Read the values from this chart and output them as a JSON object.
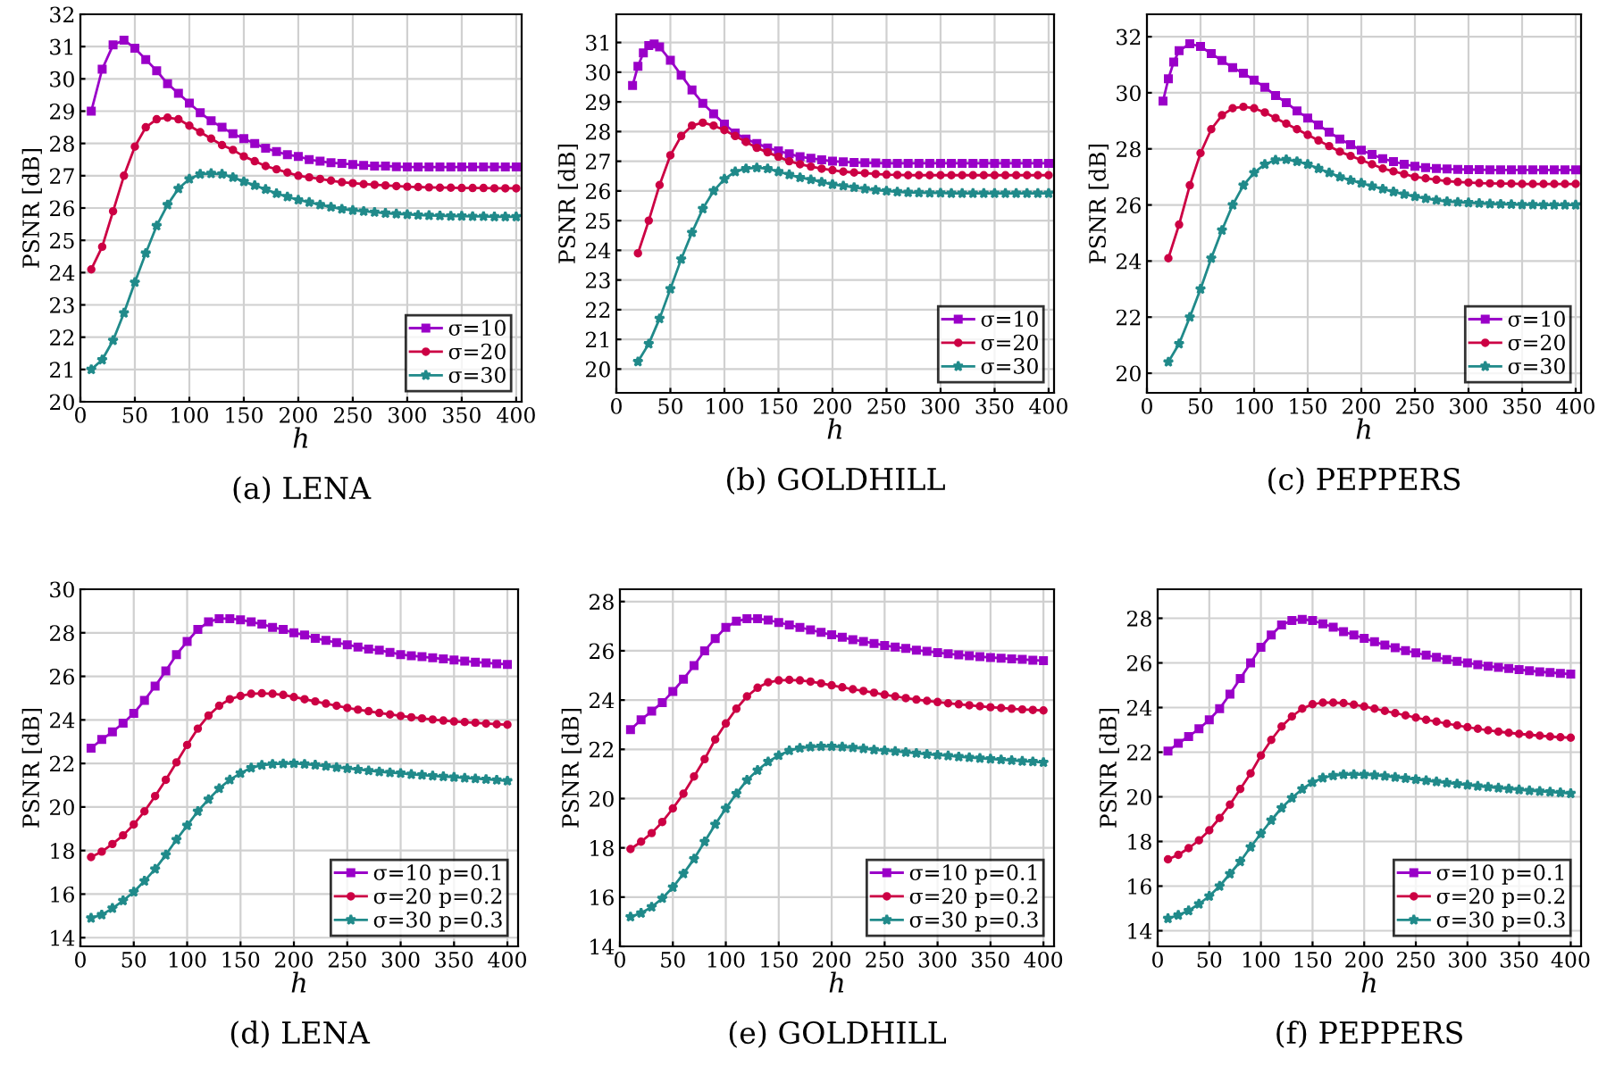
{
  "chart_data": [
    {
      "type": "line",
      "title": "(a) LENA",
      "xlabel": "h",
      "ylabel": "PSNR [dB]",
      "xlim": [
        0,
        405
      ],
      "ylim": [
        20,
        32
      ],
      "xticks": [
        0,
        50,
        100,
        150,
        200,
        250,
        300,
        350,
        400
      ],
      "yticks": [
        20,
        21,
        22,
        23,
        24,
        25,
        26,
        27,
        28,
        29,
        30,
        31,
        32
      ],
      "grid": true,
      "legend": "bottom right",
      "series": [
        {
          "name": "σ=10",
          "color": "#9a00c8",
          "marker": "square",
          "x": [
            10,
            20,
            30,
            40,
            50,
            60,
            70,
            80,
            90,
            100,
            110,
            120,
            130,
            140,
            150,
            160,
            170,
            180,
            190,
            200,
            210,
            220,
            230,
            240,
            250,
            260,
            270,
            280,
            290,
            300,
            310,
            320,
            330,
            340,
            350,
            360,
            370,
            380,
            390,
            400
          ],
          "values": [
            29.0,
            30.3,
            31.05,
            31.2,
            30.95,
            30.6,
            30.25,
            29.85,
            29.55,
            29.25,
            28.95,
            28.7,
            28.5,
            28.3,
            28.15,
            28.0,
            27.85,
            27.75,
            27.65,
            27.6,
            27.5,
            27.45,
            27.4,
            27.38,
            27.35,
            27.32,
            27.3,
            27.3,
            27.28,
            27.27,
            27.27,
            27.27,
            27.27,
            27.27,
            27.27,
            27.27,
            27.27,
            27.27,
            27.27,
            27.27
          ]
        },
        {
          "name": "σ=20",
          "color": "#cc0044",
          "marker": "circle",
          "x": [
            10,
            20,
            30,
            40,
            50,
            60,
            70,
            80,
            90,
            100,
            110,
            120,
            130,
            140,
            150,
            160,
            170,
            180,
            190,
            200,
            210,
            220,
            230,
            240,
            250,
            260,
            270,
            280,
            290,
            300,
            310,
            320,
            330,
            340,
            350,
            360,
            370,
            380,
            390,
            400
          ],
          "values": [
            24.1,
            24.8,
            25.9,
            27.0,
            27.9,
            28.5,
            28.75,
            28.8,
            28.75,
            28.55,
            28.35,
            28.15,
            27.95,
            27.8,
            27.6,
            27.45,
            27.3,
            27.2,
            27.1,
            27.0,
            26.95,
            26.9,
            26.85,
            26.8,
            26.77,
            26.74,
            26.72,
            26.7,
            26.68,
            26.66,
            26.65,
            26.64,
            26.63,
            26.63,
            26.62,
            26.62,
            26.62,
            26.61,
            26.61,
            26.61
          ]
        },
        {
          "name": "σ=30",
          "color": "#208a8a",
          "marker": "star",
          "x": [
            10,
            20,
            30,
            40,
            50,
            60,
            70,
            80,
            90,
            100,
            110,
            120,
            130,
            140,
            150,
            160,
            170,
            180,
            190,
            200,
            210,
            220,
            230,
            240,
            250,
            260,
            270,
            280,
            290,
            300,
            310,
            320,
            330,
            340,
            350,
            360,
            370,
            380,
            390,
            400
          ],
          "values": [
            21.0,
            21.3,
            21.9,
            22.75,
            23.7,
            24.6,
            25.45,
            26.1,
            26.6,
            26.9,
            27.05,
            27.07,
            27.05,
            26.95,
            26.82,
            26.7,
            26.58,
            26.45,
            26.35,
            26.25,
            26.18,
            26.1,
            26.03,
            25.97,
            25.93,
            25.9,
            25.87,
            25.84,
            25.82,
            25.8,
            25.78,
            25.77,
            25.76,
            25.75,
            25.75,
            25.74,
            25.74,
            25.73,
            25.73,
            25.73
          ]
        }
      ]
    },
    {
      "type": "line",
      "title": "(b) GOLDHILL",
      "xlabel": "h",
      "ylabel": "PSNR [dB]",
      "xlim": [
        0,
        405
      ],
      "ylim": [
        19.2,
        31.95
      ],
      "xticks": [
        0,
        50,
        100,
        150,
        200,
        250,
        300,
        350,
        400
      ],
      "yticks": [
        20,
        21,
        22,
        23,
        24,
        25,
        26,
        27,
        28,
        29,
        30,
        31
      ],
      "grid": true,
      "legend": "bottom right",
      "series": [
        {
          "name": "σ=10",
          "color": "#9a00c8",
          "marker": "square",
          "x": [
            15,
            20,
            25,
            30,
            35,
            40,
            50,
            60,
            70,
            80,
            90,
            100,
            110,
            120,
            130,
            140,
            150,
            160,
            170,
            180,
            190,
            200,
            210,
            220,
            230,
            240,
            250,
            260,
            270,
            280,
            290,
            300,
            310,
            320,
            330,
            340,
            350,
            360,
            370,
            380,
            390,
            400
          ],
          "values": [
            29.55,
            30.2,
            30.65,
            30.9,
            30.95,
            30.85,
            30.4,
            29.9,
            29.4,
            28.95,
            28.6,
            28.25,
            27.95,
            27.75,
            27.6,
            27.45,
            27.35,
            27.25,
            27.15,
            27.1,
            27.05,
            27.0,
            26.98,
            26.96,
            26.95,
            26.94,
            26.93,
            26.93,
            26.93,
            26.93,
            26.93,
            26.93,
            26.93,
            26.93,
            26.93,
            26.93,
            26.93,
            26.93,
            26.93,
            26.93,
            26.93,
            26.93
          ]
        },
        {
          "name": "σ=20",
          "color": "#cc0044",
          "marker": "circle",
          "x": [
            20,
            30,
            40,
            50,
            60,
            70,
            80,
            90,
            100,
            110,
            120,
            130,
            140,
            150,
            160,
            170,
            180,
            190,
            200,
            210,
            220,
            230,
            240,
            250,
            260,
            270,
            280,
            290,
            300,
            310,
            320,
            330,
            340,
            350,
            360,
            370,
            380,
            390,
            400
          ],
          "values": [
            23.9,
            25.0,
            26.2,
            27.2,
            27.85,
            28.2,
            28.3,
            28.2,
            28.05,
            27.85,
            27.65,
            27.45,
            27.3,
            27.15,
            27.0,
            26.9,
            26.82,
            26.75,
            26.7,
            26.65,
            26.62,
            26.6,
            26.57,
            26.55,
            26.54,
            26.53,
            26.53,
            26.53,
            26.53,
            26.53,
            26.53,
            26.53,
            26.53,
            26.53,
            26.53,
            26.53,
            26.53,
            26.53,
            26.53
          ]
        },
        {
          "name": "σ=30",
          "color": "#208a8a",
          "marker": "star",
          "x": [
            20,
            30,
            40,
            50,
            60,
            70,
            80,
            90,
            100,
            110,
            120,
            130,
            140,
            150,
            160,
            170,
            180,
            190,
            200,
            210,
            220,
            230,
            240,
            250,
            260,
            270,
            280,
            290,
            300,
            310,
            320,
            330,
            340,
            350,
            360,
            370,
            380,
            390,
            400
          ],
          "values": [
            20.25,
            20.85,
            21.7,
            22.7,
            23.7,
            24.6,
            25.4,
            26.0,
            26.4,
            26.65,
            26.75,
            26.78,
            26.75,
            26.65,
            26.55,
            26.45,
            26.38,
            26.3,
            26.22,
            26.17,
            26.12,
            26.07,
            26.03,
            26.0,
            25.97,
            25.95,
            25.94,
            25.93,
            25.93,
            25.92,
            25.92,
            25.92,
            25.92,
            25.92,
            25.92,
            25.92,
            25.92,
            25.92,
            25.92
          ]
        }
      ]
    },
    {
      "type": "line",
      "title": "(c) PEPPERS",
      "xlabel": "h",
      "ylabel": "PSNR [dB]",
      "xlim": [
        0,
        405
      ],
      "ylim": [
        19.3,
        32.8
      ],
      "xticks": [
        0,
        50,
        100,
        150,
        200,
        250,
        300,
        350,
        400
      ],
      "yticks": [
        20,
        22,
        24,
        26,
        28,
        30,
        32
      ],
      "grid": true,
      "legend": "bottom right",
      "series": [
        {
          "name": "σ=10",
          "color": "#9a00c8",
          "marker": "square",
          "x": [
            15,
            20,
            25,
            30,
            40,
            50,
            60,
            70,
            80,
            90,
            100,
            110,
            120,
            130,
            140,
            150,
            160,
            170,
            180,
            190,
            200,
            210,
            220,
            230,
            240,
            250,
            260,
            270,
            280,
            290,
            300,
            310,
            320,
            330,
            340,
            350,
            360,
            370,
            380,
            390,
            400
          ],
          "values": [
            29.7,
            30.5,
            31.1,
            31.5,
            31.75,
            31.65,
            31.4,
            31.15,
            30.9,
            30.7,
            30.45,
            30.2,
            29.9,
            29.65,
            29.35,
            29.1,
            28.85,
            28.6,
            28.35,
            28.15,
            27.95,
            27.8,
            27.65,
            27.55,
            27.45,
            27.38,
            27.33,
            27.3,
            27.28,
            27.27,
            27.26,
            27.26,
            27.25,
            27.25,
            27.25,
            27.25,
            27.25,
            27.25,
            27.25,
            27.25,
            27.25
          ]
        },
        {
          "name": "σ=20",
          "color": "#cc0044",
          "marker": "circle",
          "x": [
            20,
            30,
            40,
            50,
            60,
            70,
            80,
            90,
            100,
            110,
            120,
            130,
            140,
            150,
            160,
            170,
            180,
            190,
            200,
            210,
            220,
            230,
            240,
            250,
            260,
            270,
            280,
            290,
            300,
            310,
            320,
            330,
            340,
            350,
            360,
            370,
            380,
            390,
            400
          ],
          "values": [
            24.1,
            25.3,
            26.7,
            27.85,
            28.7,
            29.2,
            29.45,
            29.5,
            29.45,
            29.3,
            29.1,
            28.9,
            28.7,
            28.5,
            28.3,
            28.1,
            27.9,
            27.75,
            27.6,
            27.45,
            27.3,
            27.2,
            27.1,
            27.0,
            26.95,
            26.9,
            26.85,
            26.82,
            26.8,
            26.78,
            26.77,
            26.76,
            26.76,
            26.75,
            26.75,
            26.75,
            26.75,
            26.75,
            26.75
          ]
        },
        {
          "name": "σ=30",
          "color": "#208a8a",
          "marker": "star",
          "x": [
            20,
            30,
            40,
            50,
            60,
            70,
            80,
            90,
            100,
            110,
            120,
            130,
            140,
            150,
            160,
            170,
            180,
            190,
            200,
            210,
            220,
            230,
            240,
            250,
            260,
            270,
            280,
            290,
            300,
            310,
            320,
            330,
            340,
            350,
            360,
            370,
            380,
            390,
            400
          ],
          "values": [
            20.4,
            21.05,
            22.0,
            23.0,
            24.1,
            25.1,
            26.0,
            26.7,
            27.15,
            27.45,
            27.6,
            27.62,
            27.55,
            27.45,
            27.3,
            27.15,
            27.0,
            26.88,
            26.78,
            26.67,
            26.57,
            26.47,
            26.38,
            26.3,
            26.23,
            26.17,
            26.12,
            26.1,
            26.08,
            26.06,
            26.04,
            26.03,
            26.02,
            26.01,
            26.01,
            26.0,
            26.0,
            26.0,
            26.0
          ]
        }
      ]
    },
    {
      "type": "line",
      "title": "(d) LENA",
      "xlabel": "h",
      "ylabel": "PSNR [dB]",
      "xlim": [
        0,
        410
      ],
      "ylim": [
        13.6,
        30
      ],
      "xticks": [
        0,
        50,
        100,
        150,
        200,
        250,
        300,
        350,
        400
      ],
      "yticks": [
        14,
        16,
        18,
        20,
        22,
        24,
        26,
        28,
        30
      ],
      "grid": true,
      "legend": "bottom right",
      "series": [
        {
          "name": "σ=10 p=0.1",
          "color": "#9a00c8",
          "marker": "square",
          "x": [
            10,
            20,
            30,
            40,
            50,
            60,
            70,
            80,
            90,
            100,
            110,
            120,
            130,
            140,
            150,
            160,
            170,
            180,
            190,
            200,
            210,
            220,
            230,
            240,
            250,
            260,
            270,
            280,
            290,
            300,
            310,
            320,
            330,
            340,
            350,
            360,
            370,
            380,
            390,
            400
          ],
          "values": [
            22.7,
            23.1,
            23.45,
            23.85,
            24.3,
            24.9,
            25.55,
            26.25,
            27.0,
            27.6,
            28.15,
            28.5,
            28.65,
            28.65,
            28.6,
            28.5,
            28.4,
            28.25,
            28.15,
            28.0,
            27.9,
            27.75,
            27.65,
            27.55,
            27.45,
            27.35,
            27.25,
            27.2,
            27.1,
            27.0,
            26.95,
            26.9,
            26.85,
            26.8,
            26.75,
            26.7,
            26.65,
            26.62,
            26.58,
            26.55
          ]
        },
        {
          "name": "σ=20 p=0.2",
          "color": "#cc0044",
          "marker": "circle",
          "x": [
            10,
            20,
            30,
            40,
            50,
            60,
            70,
            80,
            90,
            100,
            110,
            120,
            130,
            140,
            150,
            160,
            170,
            180,
            190,
            200,
            210,
            220,
            230,
            240,
            250,
            260,
            270,
            280,
            290,
            300,
            310,
            320,
            330,
            340,
            350,
            360,
            370,
            380,
            390,
            400
          ],
          "values": [
            17.7,
            17.95,
            18.3,
            18.7,
            19.2,
            19.8,
            20.5,
            21.25,
            22.05,
            22.85,
            23.6,
            24.2,
            24.65,
            24.95,
            25.1,
            25.2,
            25.22,
            25.2,
            25.15,
            25.05,
            24.95,
            24.85,
            24.75,
            24.65,
            24.55,
            24.47,
            24.4,
            24.32,
            24.25,
            24.18,
            24.12,
            24.07,
            24.02,
            23.97,
            23.93,
            23.9,
            23.87,
            23.83,
            23.8,
            23.78
          ]
        },
        {
          "name": "σ=30 p=0.3",
          "color": "#208a8a",
          "marker": "star",
          "x": [
            10,
            20,
            30,
            40,
            50,
            60,
            70,
            80,
            90,
            100,
            110,
            120,
            130,
            140,
            150,
            160,
            170,
            180,
            190,
            200,
            210,
            220,
            230,
            240,
            250,
            260,
            270,
            280,
            290,
            300,
            310,
            320,
            330,
            340,
            350,
            360,
            370,
            380,
            390,
            400
          ],
          "values": [
            14.9,
            15.05,
            15.35,
            15.7,
            16.1,
            16.6,
            17.15,
            17.8,
            18.5,
            19.15,
            19.8,
            20.35,
            20.85,
            21.25,
            21.55,
            21.8,
            21.92,
            21.97,
            21.99,
            22.0,
            21.97,
            21.93,
            21.88,
            21.82,
            21.77,
            21.72,
            21.67,
            21.62,
            21.58,
            21.55,
            21.5,
            21.47,
            21.43,
            21.4,
            21.37,
            21.33,
            21.3,
            21.27,
            21.24,
            21.2
          ]
        }
      ]
    },
    {
      "type": "line",
      "title": "(e) GOLDHILL",
      "xlabel": "h",
      "ylabel": "PSNR [dB]",
      "xlim": [
        0,
        410
      ],
      "ylim": [
        14,
        28.5
      ],
      "xticks": [
        0,
        50,
        100,
        150,
        200,
        250,
        300,
        350,
        400
      ],
      "yticks": [
        14,
        16,
        18,
        20,
        22,
        24,
        26,
        28
      ],
      "grid": true,
      "legend": "bottom right",
      "series": [
        {
          "name": "σ=10 p=0.1",
          "color": "#9a00c8",
          "marker": "square",
          "x": [
            10,
            20,
            30,
            40,
            50,
            60,
            70,
            80,
            90,
            100,
            110,
            120,
            130,
            140,
            150,
            160,
            170,
            180,
            190,
            200,
            210,
            220,
            230,
            240,
            250,
            260,
            270,
            280,
            290,
            300,
            310,
            320,
            330,
            340,
            350,
            360,
            370,
            380,
            390,
            400
          ],
          "values": [
            22.8,
            23.2,
            23.55,
            23.9,
            24.35,
            24.85,
            25.4,
            26.0,
            26.5,
            26.95,
            27.2,
            27.3,
            27.3,
            27.25,
            27.15,
            27.05,
            26.95,
            26.85,
            26.75,
            26.65,
            26.55,
            26.45,
            26.38,
            26.3,
            26.22,
            26.15,
            26.1,
            26.03,
            25.98,
            25.93,
            25.88,
            25.84,
            25.8,
            25.76,
            25.73,
            25.7,
            25.67,
            25.65,
            25.62,
            25.6
          ]
        },
        {
          "name": "σ=20 p=0.2",
          "color": "#cc0044",
          "marker": "circle",
          "x": [
            10,
            20,
            30,
            40,
            50,
            60,
            70,
            80,
            90,
            100,
            110,
            120,
            130,
            140,
            150,
            160,
            170,
            180,
            190,
            200,
            210,
            220,
            230,
            240,
            250,
            260,
            270,
            280,
            290,
            300,
            310,
            320,
            330,
            340,
            350,
            360,
            370,
            380,
            390,
            400
          ],
          "values": [
            17.95,
            18.25,
            18.6,
            19.05,
            19.6,
            20.2,
            20.9,
            21.6,
            22.4,
            23.05,
            23.65,
            24.15,
            24.5,
            24.72,
            24.8,
            24.82,
            24.8,
            24.75,
            24.68,
            24.6,
            24.52,
            24.44,
            24.37,
            24.3,
            24.22,
            24.15,
            24.08,
            24.02,
            23.97,
            23.92,
            23.87,
            23.83,
            23.79,
            23.75,
            23.71,
            23.68,
            23.65,
            23.62,
            23.6,
            23.58
          ]
        },
        {
          "name": "σ=30 p=0.3",
          "color": "#208a8a",
          "marker": "star",
          "x": [
            10,
            20,
            30,
            40,
            50,
            60,
            70,
            80,
            90,
            100,
            110,
            120,
            130,
            140,
            150,
            160,
            170,
            180,
            190,
            200,
            210,
            220,
            230,
            240,
            250,
            260,
            270,
            280,
            290,
            300,
            310,
            320,
            330,
            340,
            350,
            360,
            370,
            380,
            390,
            400
          ],
          "values": [
            15.2,
            15.35,
            15.6,
            15.95,
            16.4,
            16.95,
            17.55,
            18.25,
            18.95,
            19.6,
            20.2,
            20.75,
            21.15,
            21.5,
            21.75,
            21.95,
            22.05,
            22.1,
            22.12,
            22.12,
            22.1,
            22.07,
            22.03,
            21.98,
            21.95,
            21.92,
            21.88,
            21.84,
            21.8,
            21.77,
            21.74,
            21.7,
            21.67,
            21.64,
            21.61,
            21.58,
            21.55,
            21.52,
            21.5,
            21.47
          ]
        }
      ]
    },
    {
      "type": "line",
      "title": "(f) PEPPERS",
      "xlabel": "h",
      "ylabel": "PSNR [dB]",
      "xlim": [
        0,
        410
      ],
      "ylim": [
        13.3,
        29.3
      ],
      "xticks": [
        0,
        50,
        100,
        150,
        200,
        250,
        300,
        350,
        400
      ],
      "yticks": [
        14,
        16,
        18,
        20,
        22,
        24,
        26,
        28
      ],
      "grid": true,
      "legend": "bottom right",
      "series": [
        {
          "name": "σ=10 p=0.1",
          "color": "#9a00c8",
          "marker": "square",
          "x": [
            10,
            20,
            30,
            40,
            50,
            60,
            70,
            80,
            90,
            100,
            110,
            120,
            130,
            140,
            150,
            160,
            170,
            180,
            190,
            200,
            210,
            220,
            230,
            240,
            250,
            260,
            270,
            280,
            290,
            300,
            310,
            320,
            330,
            340,
            350,
            360,
            370,
            380,
            390,
            400
          ],
          "values": [
            22.05,
            22.4,
            22.7,
            23.05,
            23.45,
            23.95,
            24.6,
            25.3,
            26.0,
            26.7,
            27.25,
            27.7,
            27.9,
            27.95,
            27.9,
            27.75,
            27.6,
            27.4,
            27.25,
            27.1,
            26.95,
            26.8,
            26.68,
            26.55,
            26.45,
            26.35,
            26.25,
            26.15,
            26.07,
            26.0,
            25.92,
            25.85,
            25.8,
            25.75,
            25.7,
            25.65,
            25.6,
            25.57,
            25.53,
            25.5
          ]
        },
        {
          "name": "σ=20 p=0.2",
          "color": "#cc0044",
          "marker": "circle",
          "x": [
            10,
            20,
            30,
            40,
            50,
            60,
            70,
            80,
            90,
            100,
            110,
            120,
            130,
            140,
            150,
            160,
            170,
            180,
            190,
            200,
            210,
            220,
            230,
            240,
            250,
            260,
            270,
            280,
            290,
            300,
            310,
            320,
            330,
            340,
            350,
            360,
            370,
            380,
            390,
            400
          ],
          "values": [
            17.2,
            17.4,
            17.7,
            18.05,
            18.5,
            19.05,
            19.65,
            20.35,
            21.05,
            21.85,
            22.55,
            23.15,
            23.6,
            23.95,
            24.15,
            24.22,
            24.22,
            24.2,
            24.13,
            24.05,
            23.95,
            23.85,
            23.75,
            23.65,
            23.55,
            23.45,
            23.37,
            23.28,
            23.2,
            23.12,
            23.05,
            22.98,
            22.92,
            22.87,
            22.82,
            22.78,
            22.74,
            22.7,
            22.67,
            22.65
          ]
        },
        {
          "name": "σ=30 p=0.3",
          "color": "#208a8a",
          "marker": "star",
          "x": [
            10,
            20,
            30,
            40,
            50,
            60,
            70,
            80,
            90,
            100,
            110,
            120,
            130,
            140,
            150,
            160,
            170,
            180,
            190,
            200,
            210,
            220,
            230,
            240,
            250,
            260,
            270,
            280,
            290,
            300,
            310,
            320,
            330,
            340,
            350,
            360,
            370,
            380,
            390,
            400
          ],
          "values": [
            14.55,
            14.7,
            14.9,
            15.2,
            15.55,
            16.0,
            16.55,
            17.1,
            17.75,
            18.35,
            18.95,
            19.5,
            19.95,
            20.35,
            20.65,
            20.85,
            20.95,
            21.0,
            21.0,
            21.0,
            20.97,
            20.93,
            20.88,
            20.83,
            20.78,
            20.73,
            20.68,
            20.63,
            20.58,
            20.53,
            20.48,
            20.44,
            20.4,
            20.36,
            20.32,
            20.28,
            20.25,
            20.22,
            20.19,
            20.15
          ]
        }
      ]
    }
  ]
}
